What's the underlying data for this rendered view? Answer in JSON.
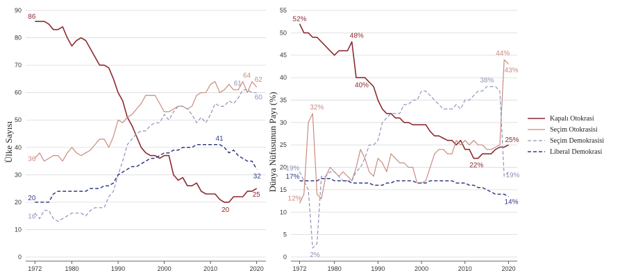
{
  "colors": {
    "kapali": "#8b2a2f",
    "secim_oto": "#c98b7e",
    "secim_dem": "#8f92bb",
    "liberal": "#313b82",
    "grid": "#d9d9d9"
  },
  "legend": {
    "kapali": "Kapalı Otokrasi",
    "secim_oto": "Seçim Otokrasisi",
    "secim_dem": "Seçim Demokrasisi",
    "liberal": "Liberal Demokrasi"
  },
  "chart_data": [
    {
      "type": "line",
      "ylabel": "Ülke Sayısı",
      "xlim": [
        1970,
        2022
      ],
      "ylim": [
        0,
        90
      ],
      "xticks": [
        1972,
        1980,
        1990,
        2000,
        2010,
        2020
      ],
      "yticks": [
        0,
        10,
        20,
        30,
        40,
        50,
        60,
        70,
        80,
        90
      ],
      "x": [
        1972,
        1973,
        1974,
        1975,
        1976,
        1977,
        1978,
        1979,
        1980,
        1981,
        1982,
        1983,
        1984,
        1985,
        1986,
        1987,
        1988,
        1989,
        1990,
        1991,
        1992,
        1993,
        1994,
        1995,
        1996,
        1997,
        1998,
        1999,
        2000,
        2001,
        2002,
        2003,
        2004,
        2005,
        2006,
        2007,
        2008,
        2009,
        2010,
        2011,
        2012,
        2013,
        2014,
        2015,
        2016,
        2017,
        2018,
        2019,
        2020
      ],
      "series": [
        {
          "name": "Kapalı Otokrasi",
          "key": "kapali",
          "values": [
            86,
            86,
            86,
            85,
            83,
            83,
            84,
            80,
            77,
            79,
            80,
            79,
            76,
            73,
            70,
            70,
            69,
            65,
            60,
            57,
            51,
            48,
            44,
            40,
            38,
            37,
            37,
            36,
            37,
            37,
            30,
            28,
            29,
            26,
            26,
            27,
            24,
            23,
            23,
            23,
            21,
            20,
            20,
            22,
            22,
            22,
            24,
            24,
            25
          ]
        },
        {
          "name": "Seçim Otokrasisi",
          "key": "secim_oto",
          "values": [
            36,
            38,
            35,
            36,
            37,
            37,
            35,
            38,
            40,
            38,
            37,
            38,
            39,
            41,
            43,
            43,
            40,
            44,
            50,
            49,
            51,
            52,
            54,
            56,
            59,
            59,
            59,
            56,
            53,
            53,
            54,
            55,
            55,
            54,
            55,
            59,
            60,
            60,
            63,
            64,
            60,
            61,
            63,
            61,
            61,
            64,
            60,
            64,
            62
          ]
        },
        {
          "name": "Seçim Demokrasisi",
          "key": "secim_dem",
          "values": [
            16,
            14,
            17,
            17,
            14,
            13,
            14,
            15,
            16,
            16,
            16,
            15,
            17,
            18,
            18,
            18,
            22,
            24,
            30,
            35,
            41,
            43,
            45,
            46,
            46,
            48,
            49,
            49,
            52,
            50,
            53,
            55,
            55,
            54,
            52,
            49,
            51,
            49,
            52,
            56,
            55,
            55,
            57,
            56,
            58,
            61,
            61,
            60,
            60
          ]
        },
        {
          "name": "Liberal Demokrasi",
          "key": "liberal",
          "values": [
            20,
            20,
            20,
            20,
            23,
            24,
            24,
            24,
            24,
            24,
            24,
            24,
            25,
            25,
            25,
            26,
            26,
            27,
            30,
            31,
            32,
            33,
            33,
            34,
            35,
            36,
            36,
            37,
            38,
            38,
            39,
            39,
            40,
            40,
            40,
            41,
            41,
            41,
            41,
            41,
            41,
            40,
            38,
            39,
            37,
            36,
            35,
            35,
            32
          ]
        }
      ],
      "labels": [
        {
          "text": "86",
          "series": "kapali",
          "x": 1972,
          "y": 86
        },
        {
          "text": "36",
          "series": "secim_oto",
          "x": 1972,
          "y": 36
        },
        {
          "text": "20",
          "series": "liberal",
          "x": 1972,
          "y": 20
        },
        {
          "text": "16",
          "series": "secim_dem",
          "x": 1972,
          "y": 16
        },
        {
          "text": "64",
          "series": "secim_oto",
          "x": 2019,
          "y": 64
        },
        {
          "text": "62",
          "series": "secim_oto",
          "x": 2020,
          "y": 62
        },
        {
          "text": "61",
          "series": "secim_dem",
          "x": 2017,
          "y": 61
        },
        {
          "text": "60",
          "series": "secim_dem",
          "x": 2020,
          "y": 60
        },
        {
          "text": "41",
          "series": "liberal",
          "x": 2012,
          "y": 41
        },
        {
          "text": "32",
          "series": "liberal",
          "x": 2020,
          "y": 32
        },
        {
          "text": "25",
          "series": "kapali",
          "x": 2020,
          "y": 25
        },
        {
          "text": "20",
          "series": "kapali",
          "x": 2013,
          "y": 20
        }
      ]
    },
    {
      "type": "line",
      "ylabel": "Dünya Nüfusunun Payı (%)",
      "xlim": [
        1970,
        2022
      ],
      "ylim": [
        0,
        55
      ],
      "xticks": [
        1972,
        1980,
        1990,
        2000,
        2010,
        2020
      ],
      "yticks": [
        0,
        5,
        10,
        15,
        20,
        25,
        30,
        35,
        40,
        45,
        50,
        55
      ],
      "x": [
        1972,
        1973,
        1974,
        1975,
        1976,
        1977,
        1978,
        1979,
        1980,
        1981,
        1982,
        1983,
        1984,
        1985,
        1986,
        1987,
        1988,
        1989,
        1990,
        1991,
        1992,
        1993,
        1994,
        1995,
        1996,
        1997,
        1998,
        1999,
        2000,
        2001,
        2002,
        2003,
        2004,
        2005,
        2006,
        2007,
        2008,
        2009,
        2010,
        2011,
        2012,
        2013,
        2014,
        2015,
        2016,
        2017,
        2018,
        2019,
        2020
      ],
      "series": [
        {
          "name": "Kapalı Otokrasi",
          "key": "kapali",
          "values": [
            52,
            50,
            50,
            49,
            49,
            48,
            47,
            46,
            45,
            46,
            46,
            46,
            48,
            40,
            40,
            40,
            39,
            38,
            35,
            33,
            32,
            32,
            31,
            31,
            30,
            30,
            29.5,
            29.5,
            29.5,
            29.5,
            28,
            27,
            27,
            26.5,
            26,
            26,
            25,
            26,
            24,
            24,
            22,
            22,
            23,
            23,
            23,
            24,
            24.5,
            24.5,
            25
          ]
        },
        {
          "name": "Seçim Otokrasisi",
          "key": "secim_oto",
          "values": [
            12,
            14,
            30,
            32,
            14,
            13,
            18,
            20,
            19,
            18,
            19,
            18,
            17,
            20,
            24,
            22,
            19,
            18,
            22,
            21,
            19,
            23,
            22,
            21,
            21,
            20,
            20,
            16.5,
            16.5,
            17,
            20,
            23,
            24,
            24,
            23,
            23,
            26,
            25,
            26,
            25,
            26,
            25,
            25,
            24,
            24,
            24.5,
            25,
            44,
            43
          ]
        },
        {
          "name": "Seçim Demokrasisi",
          "key": "secim_dem",
          "values": [
            19,
            17,
            15,
            2,
            3,
            18,
            18,
            19,
            19,
            18,
            17,
            17,
            17,
            19,
            20,
            22,
            25,
            25,
            26,
            30,
            31,
            32,
            32,
            32,
            34,
            34,
            35,
            35,
            37,
            37,
            36,
            35,
            34,
            33,
            33,
            33,
            34,
            33,
            35,
            35,
            36,
            37,
            37,
            38,
            38,
            38,
            37,
            18,
            19
          ]
        },
        {
          "name": "Liberal Demokrasi",
          "key": "liberal",
          "values": [
            17,
            17,
            17,
            17,
            17,
            17.5,
            17.5,
            17.5,
            17,
            17,
            17,
            17,
            16.5,
            16.5,
            16.5,
            16.5,
            16.5,
            16,
            16,
            16,
            16.5,
            16.5,
            17,
            17,
            17,
            17,
            17,
            16.5,
            16.5,
            16.5,
            17,
            17,
            17,
            17,
            17,
            17,
            16.5,
            16.5,
            16.5,
            16,
            16,
            15.5,
            15.5,
            15,
            14.5,
            14,
            14,
            14,
            13.5
          ]
        }
      ],
      "labels": [
        {
          "text": "52%",
          "series": "kapali",
          "x": 1972,
          "y": 52
        },
        {
          "text": "48%",
          "series": "kapali",
          "x": 1984,
          "y": 48
        },
        {
          "text": "40%",
          "series": "kapali",
          "x": 1985,
          "y": 40
        },
        {
          "text": "22%",
          "series": "kapali",
          "x": 2012,
          "y": 22
        },
        {
          "text": "25%",
          "series": "kapali",
          "x": 2020,
          "y": 25
        },
        {
          "text": "32%",
          "series": "secim_oto",
          "x": 1975,
          "y": 32
        },
        {
          "text": "12%",
          "series": "secim_oto",
          "x": 1972,
          "y": 12
        },
        {
          "text": "44%",
          "series": "secim_oto",
          "x": 2019,
          "y": 44
        },
        {
          "text": "43%",
          "series": "secim_oto",
          "x": 2020,
          "y": 43
        },
        {
          "text": "38%",
          "series": "secim_dem",
          "x": 2016,
          "y": 38
        },
        {
          "text": "19%",
          "series": "secim_dem",
          "x": 1972,
          "y": 19
        },
        {
          "text": "19%",
          "series": "secim_dem",
          "x": 2020,
          "y": 19
        },
        {
          "text": "2%",
          "series": "secim_dem",
          "x": 1975,
          "y": 2
        },
        {
          "text": "17%",
          "series": "liberal",
          "x": 1972,
          "y": 17
        },
        {
          "text": "14%",
          "series": "liberal",
          "x": 2020,
          "y": 14
        }
      ]
    }
  ]
}
